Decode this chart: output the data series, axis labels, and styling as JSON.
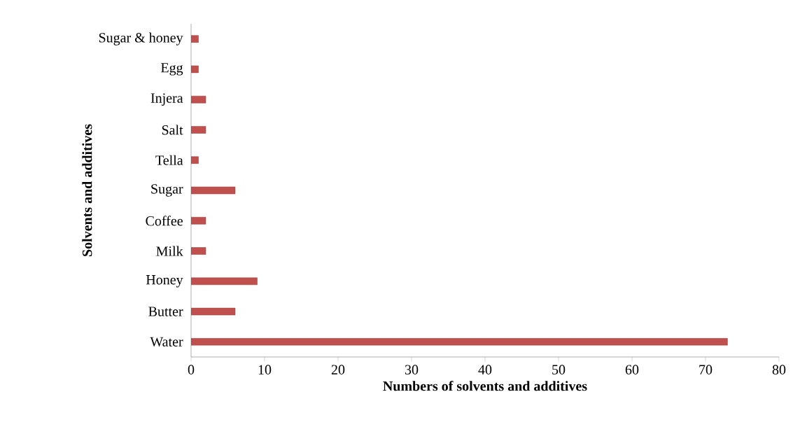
{
  "chart_data": {
    "type": "bar",
    "orientation": "horizontal",
    "xlabel": "Numbers of solvents and additives",
    "ylabel": "Solvents and additives",
    "categories": [
      "Sugar & honey",
      "Egg",
      "Injera",
      "Salt",
      "Tella",
      "Sugar",
      "Coffee",
      "Milk",
      "Honey",
      "Butter",
      "Water"
    ],
    "values": [
      1,
      1,
      2,
      2,
      1,
      6,
      2,
      2,
      9,
      6,
      73
    ],
    "color": "#c0504d",
    "xlim": [
      0,
      80
    ],
    "xticks": [
      0,
      10,
      20,
      30,
      40,
      50,
      60,
      70,
      80
    ],
    "grid": false
  }
}
